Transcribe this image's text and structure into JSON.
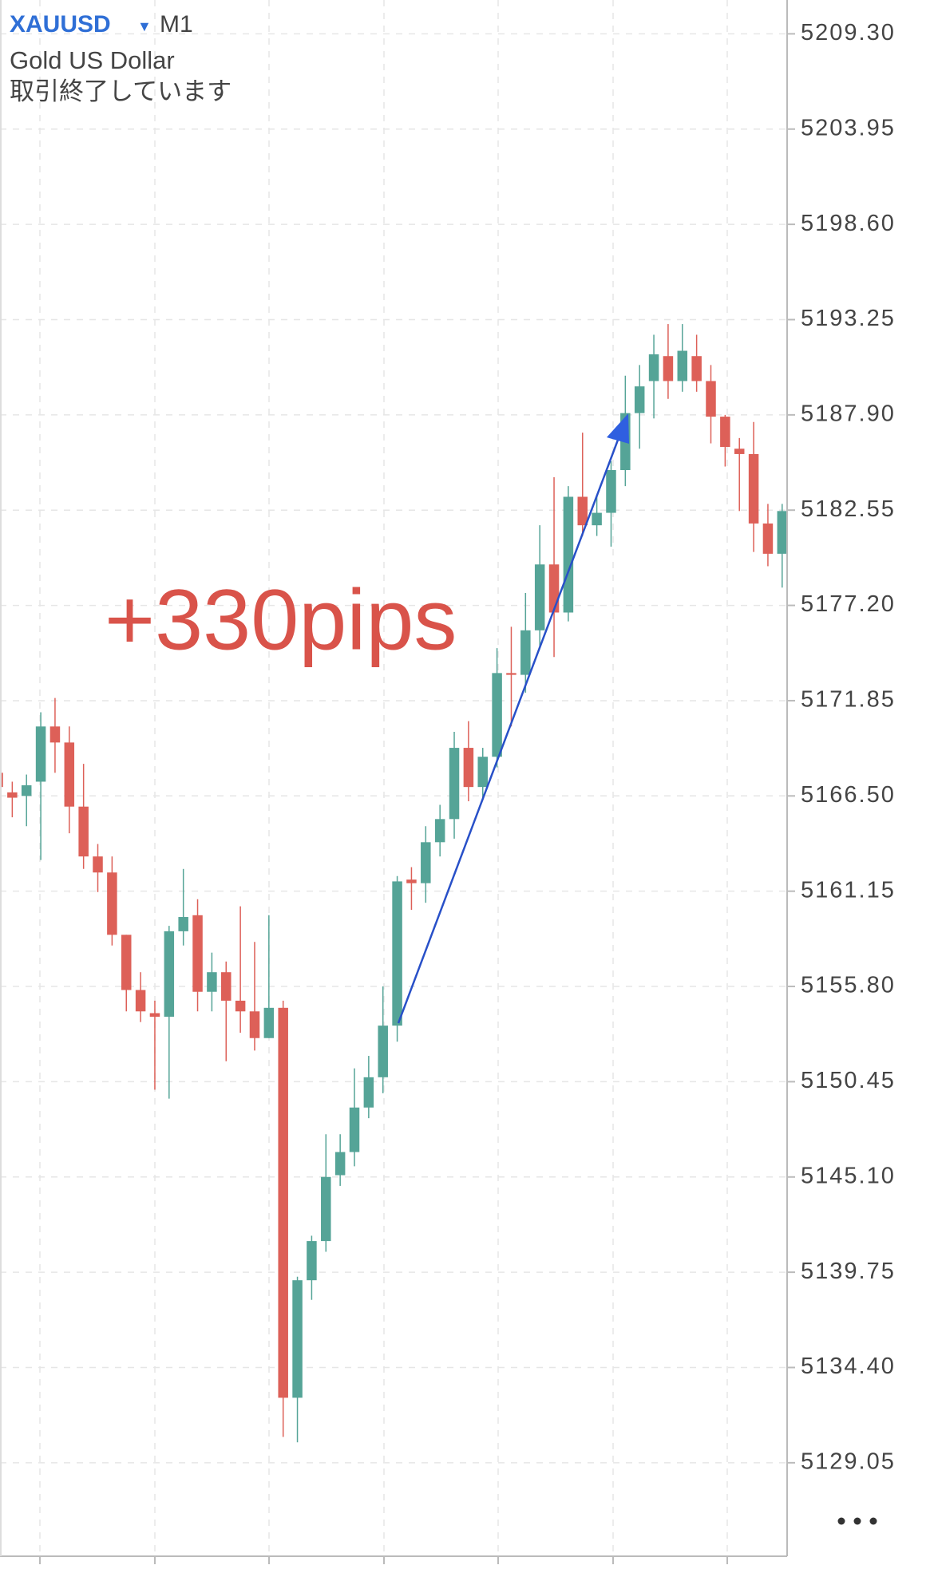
{
  "chart_data": {
    "type": "candlestick",
    "symbol": "XAUUSD",
    "timeframe": "M1",
    "subtitle": "Gold US Dollar",
    "status": "取引終了しています",
    "annotation": "+330pips",
    "up_color": "#55a497",
    "down_color": "#dd6058",
    "grid": true,
    "ylim": [
      5123.8,
      5211.2
    ],
    "yticks": [
      {
        "value": 5209.3,
        "label": "5209.30"
      },
      5203.95,
      {
        "value": 5198.6,
        "label": "5198.60"
      },
      5193.25,
      {
        "value": 5187.9,
        "label": "5187.90"
      },
      5182.55,
      {
        "value": 5177.2,
        "label": "5177.20"
      },
      5171.85,
      {
        "value": 5166.5,
        "label": "5166.50"
      },
      5161.15,
      {
        "value": 5155.8,
        "label": "5155.80"
      },
      5150.45,
      {
        "value": 5145.1,
        "label": "5145.10"
      },
      5139.75,
      {
        "value": 5134.4,
        "label": "5134.40"
      },
      5129.05
    ],
    "series": [
      {
        "open": [
          5167.8,
          5166.7,
          5166.5,
          5167.3,
          5170.4,
          5169.5,
          5165.9,
          5163.1,
          5162.2,
          5158.7,
          5155.6,
          5154.3,
          5154.1,
          5158.9,
          5159.8,
          5155.5,
          5156.6,
          5155.0,
          5154.4,
          5152.9,
          5154.6,
          5132.7,
          5139.3,
          5141.5,
          5145.2,
          5146.5,
          5149.0,
          5150.7,
          5153.6,
          5161.8,
          5161.6,
          5163.9,
          5165.2,
          5169.2,
          5167.0,
          5168.7,
          5173.4,
          5173.3,
          5175.8,
          5179.5,
          5176.8,
          5183.3,
          5181.7,
          5182.4,
          5184.8,
          5188.0,
          5189.8,
          5191.2,
          5189.8,
          5191.2,
          5189.8,
          5187.8,
          5186.0,
          5185.7,
          5181.8,
          5180.1
        ],
        "high": [
          5168.7,
          5167.3,
          5167.7,
          5171.2,
          5172.0,
          5170.4,
          5168.3,
          5163.8,
          5163.1,
          5158.7,
          5156.6,
          5155.0,
          5159.2,
          5162.4,
          5160.7,
          5157.7,
          5157.2,
          5160.3,
          5158.3,
          5159.8,
          5155.0,
          5139.5,
          5141.8,
          5147.5,
          5147.5,
          5151.2,
          5151.9,
          5155.8,
          5162.0,
          5162.5,
          5164.8,
          5166.0,
          5170.1,
          5170.7,
          5169.2,
          5174.8,
          5176.0,
          5177.9,
          5181.7,
          5184.4,
          5183.9,
          5186.9,
          5183.3,
          5185.3,
          5190.1,
          5190.7,
          5192.4,
          5193.0,
          5193.0,
          5192.4,
          5190.7,
          5187.9,
          5186.6,
          5187.5,
          5182.9,
          5182.9
        ],
        "low": [
          5165.3,
          5165.3,
          5164.8,
          5162.9,
          5167.8,
          5164.4,
          5162.4,
          5161.1,
          5158.1,
          5154.4,
          5153.8,
          5150.0,
          5149.5,
          5158.1,
          5154.4,
          5154.4,
          5151.6,
          5153.2,
          5152.2,
          5152.9,
          5130.5,
          5130.2,
          5138.2,
          5140.9,
          5144.6,
          5145.7,
          5148.4,
          5149.8,
          5152.7,
          5160.1,
          5160.5,
          5163.1,
          5164.1,
          5166.2,
          5166.4,
          5168.1,
          5170.4,
          5172.3,
          5174.8,
          5174.3,
          5176.3,
          5181.1,
          5181.1,
          5180.5,
          5183.9,
          5186.0,
          5187.7,
          5188.8,
          5189.2,
          5189.2,
          5186.3,
          5185.0,
          5182.5,
          5180.2,
          5179.4,
          5178.2
        ],
        "close": [
          5167.0,
          5166.4,
          5167.1,
          5170.4,
          5169.5,
          5165.9,
          5163.1,
          5162.2,
          5158.7,
          5155.6,
          5154.4,
          5154.1,
          5158.9,
          5159.7,
          5155.5,
          5156.6,
          5155.0,
          5154.4,
          5152.9,
          5154.6,
          5132.7,
          5139.3,
          5141.5,
          5145.1,
          5146.5,
          5149.0,
          5150.7,
          5153.6,
          5161.7,
          5161.6,
          5163.9,
          5165.2,
          5169.2,
          5167.0,
          5168.7,
          5173.4,
          5173.3,
          5175.8,
          5179.5,
          5176.8,
          5183.3,
          5181.7,
          5182.4,
          5184.8,
          5188.0,
          5189.5,
          5191.3,
          5189.8,
          5191.5,
          5189.8,
          5187.8,
          5186.1,
          5185.7,
          5181.8,
          5180.1,
          5182.5
        ]
      }
    ]
  }
}
